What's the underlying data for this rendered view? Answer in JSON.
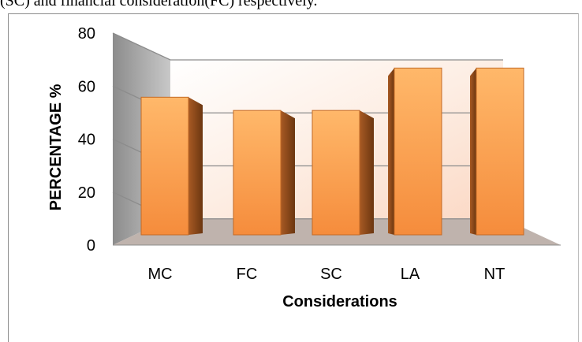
{
  "header_text": "(SC) and financial consideration(FC) respectively.",
  "chart_data": {
    "type": "bar",
    "style": "3d-column",
    "categories": [
      "MC",
      "FC",
      "SC",
      "LA",
      "NT"
    ],
    "values": [
      57,
      52,
      52,
      68,
      68
    ],
    "xlabel": "Considerations",
    "ylabel": "PERCENTAGE %",
    "ylim": [
      0,
      80
    ],
    "yticks": [
      0,
      20,
      40,
      60,
      80
    ],
    "grid": true,
    "legend": "none",
    "colors": {
      "bar_front": "#f79646",
      "bar_side": "#a0521c",
      "back_wall": "#fdf0e8",
      "side_wall": "#a6a6a6",
      "floor": "#bfb3ad"
    }
  }
}
